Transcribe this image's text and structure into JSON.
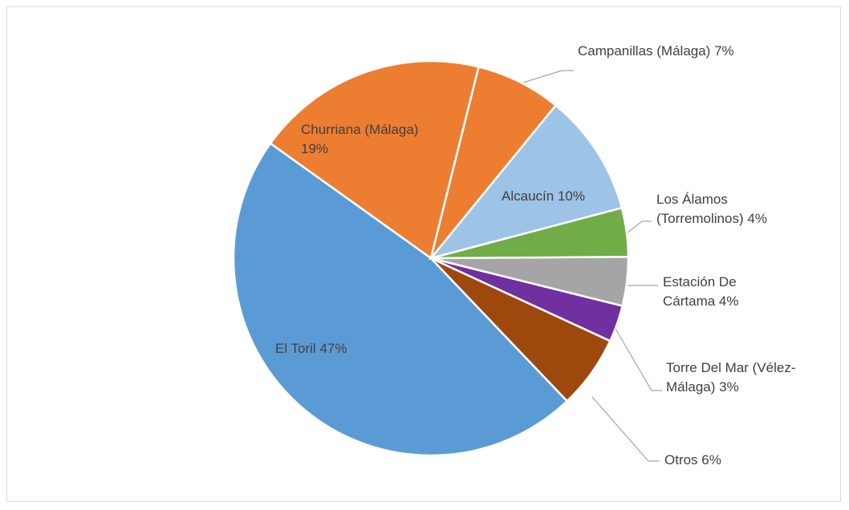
{
  "chart_data": {
    "type": "pie",
    "categories": [
      "Campanillas (Málaga)",
      "Alcaucín",
      "Los Álamos (Torremolinos)",
      "Estación De Cártama",
      "Torre Del Mar (Vélez-Málaga)",
      "Otros",
      "El Toril",
      "Churriana (Málaga)"
    ],
    "values": [
      7,
      10,
      4,
      4,
      3,
      6,
      47,
      19
    ],
    "value_labels": [
      "7%",
      "10%",
      "4%",
      "4%",
      "3%",
      "6%",
      "47%",
      "19%"
    ],
    "colors": [
      "#ed7d31",
      "#9dc3e6",
      "#70ad47",
      "#a5a5a5",
      "#7030a0",
      "#9e480e",
      "#5b9bd5",
      "#ed7d31"
    ]
  }
}
